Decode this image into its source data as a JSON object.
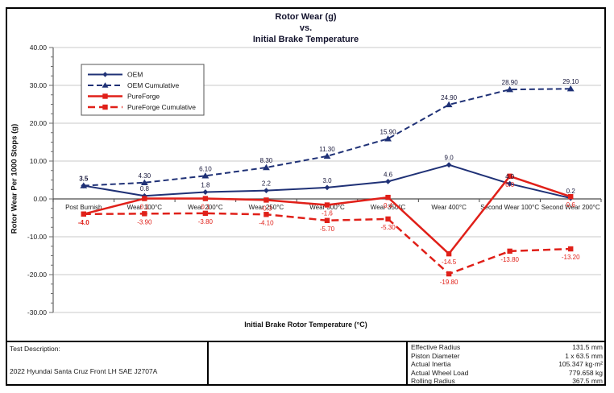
{
  "title": {
    "line1": "Rotor Wear (g)",
    "line2": "vs.",
    "line3": "Initial Brake Temperature"
  },
  "y_axis_title": "Rotor Wear Per 1000 Stops (g)",
  "x_axis_title": "Initial Brake Rotor Temperature (°C)",
  "colors": {
    "navy": "#1f3176",
    "red": "#e02019",
    "grid": "#c8c8c8",
    "axis": "#6e6e6e",
    "zero_axis": "#4a4a4a",
    "text": "#1a1a1a",
    "oem_label": "#16163a"
  },
  "chart_data": {
    "type": "line",
    "title": "Rotor Wear (g) vs. Initial Brake Temperature",
    "xlabel": "Initial Brake Rotor Temperature (°C)",
    "ylabel": "Rotor Wear Per 1000 Stops (g)",
    "ylim": [
      -30,
      40
    ],
    "ytick_step": 10,
    "ytick_labels": [
      "40.00",
      "30.00",
      "20.00",
      "10.00",
      "0.00",
      "-10.00",
      "-20.00",
      "-30.00"
    ],
    "grid": true,
    "legend_position": "top-left",
    "categories": [
      "Post Burnish",
      "Wear 100°C",
      "Wear 200°C",
      "Wear 250°C",
      "Wear 300°C",
      "Wear 350°C",
      "Wear 400°C",
      "Second Wear 100°C",
      "Second Wear 200°C"
    ],
    "series": [
      {
        "name": "OEM",
        "color": "#1f3176",
        "label_color": "#16163a",
        "dash": "",
        "width": 2,
        "marker": "diamond",
        "label_pos": "above",
        "bold_first": true,
        "values": [
          3.5,
          0.8,
          1.8,
          2.2,
          3.0,
          4.6,
          9.0,
          4.0,
          0.2
        ],
        "labels": [
          "3.5",
          "0.8",
          "1.8",
          "2.2",
          "3.0",
          "4.6",
          "9.0",
          "4.0",
          "0.2"
        ]
      },
      {
        "name": "OEM Cumulative",
        "color": "#1f3176",
        "label_color": "#16163a",
        "dash": "7,4",
        "width": 2,
        "marker": "triangle",
        "label_pos": "above",
        "bold_first": false,
        "values": [
          3.5,
          4.3,
          6.1,
          8.3,
          11.3,
          15.9,
          24.9,
          28.9,
          29.1
        ],
        "labels": [
          "",
          "4.30",
          "6.10",
          "8.30",
          "11.30",
          "15.90",
          "24.90",
          "28.90",
          "29.10"
        ]
      },
      {
        "name": "PureForge",
        "color": "#e02019",
        "label_color": "#e02019",
        "dash": "",
        "width": 2.5,
        "marker": "square",
        "label_pos": "below",
        "bold_first": true,
        "values": [
          -4.0,
          0.1,
          0.1,
          -0.3,
          -1.6,
          0.4,
          -14.5,
          6.0,
          0.6
        ],
        "labels": [
          "-4.0",
          "0.1",
          "0.1",
          "-0.3",
          "-1.6",
          "0.4",
          "-14.5",
          "6.0",
          "0.6"
        ]
      },
      {
        "name": "PureForge Cumulative",
        "color": "#e02019",
        "label_color": "#e02019",
        "dash": "9,5",
        "width": 2.5,
        "marker": "square",
        "label_pos": "below",
        "bold_first": false,
        "values": [
          -4.0,
          -3.9,
          -3.8,
          -4.1,
          -5.7,
          -5.3,
          -19.8,
          -13.8,
          -13.2
        ],
        "labels": [
          "",
          "-3.90",
          "-3.80",
          "-4.10",
          "-5.70",
          "-5.30",
          "-19.80",
          "-13.80",
          "-13.20"
        ]
      }
    ]
  },
  "footer_table": {
    "test_description_label": "Test Description:",
    "test_description_value": "2022 Hyundai Santa Cruz Front LH SAE J2707A",
    "specs": [
      {
        "label": "Effective Radius",
        "value": "131.5 mm"
      },
      {
        "label": "Piston Diameter",
        "value": "1 x 63.5 mm"
      },
      {
        "label": "Actual Inertia",
        "value": "105.347 kg·m²"
      },
      {
        "label": "Actual Wheel Load",
        "value": "779.658 kg"
      },
      {
        "label": "Rolling Radius",
        "value": "367.5 mm"
      }
    ]
  }
}
